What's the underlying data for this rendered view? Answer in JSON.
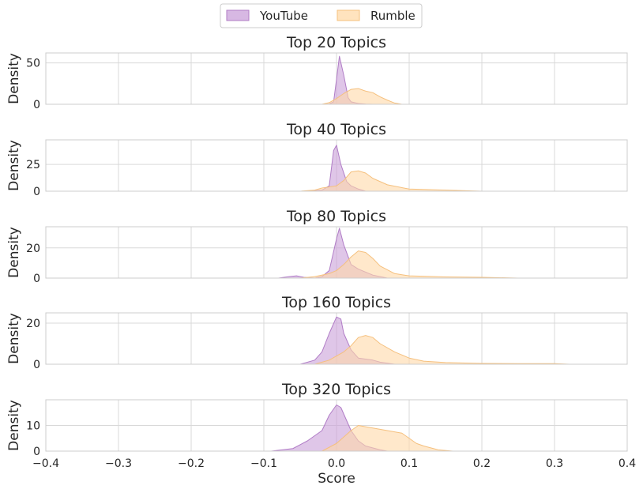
{
  "chart_data": {
    "type": "area",
    "legend": {
      "placement": "top-center",
      "entries": [
        {
          "name": "YouTube",
          "color": "#c9a0d9"
        },
        {
          "name": "Rumble",
          "color": "#ffd9a8"
        }
      ]
    },
    "xlabel": "Score",
    "ylabel": "Density",
    "xlim": [
      -0.4,
      0.4
    ],
    "xticks": [
      -0.4,
      -0.3,
      -0.2,
      -0.1,
      0.0,
      0.1,
      0.2,
      0.3,
      0.4
    ],
    "xtick_labels": [
      "−0.4",
      "−0.3",
      "−0.2",
      "−0.1",
      "0.0",
      "0.1",
      "0.2",
      "0.3",
      "0.4"
    ],
    "grid": true,
    "colors": {
      "youtube_fill": "#c9a0d9",
      "youtube_line": "#b07cc6",
      "rumble_fill": "#ffd9a8",
      "rumble_line": "#f5c07e"
    },
    "panels": [
      {
        "title": "Top 20 Topics",
        "ylim": [
          0,
          62
        ],
        "yticks": [
          0,
          50
        ],
        "series": [
          {
            "name": "YouTube",
            "x": [
              -0.02,
              -0.01,
              -0.004,
              0.0,
              0.004,
              0.01,
              0.016,
              0.02,
              0.03,
              0.04,
              0.05
            ],
            "y": [
              0,
              0.3,
              3,
              30,
              58,
              35,
              8,
              3,
              1,
              0.3,
              0
            ]
          },
          {
            "name": "Rumble",
            "x": [
              -0.02,
              -0.01,
              0.0,
              0.01,
              0.02,
              0.03,
              0.04,
              0.05,
              0.06,
              0.07,
              0.08,
              0.09
            ],
            "y": [
              0,
              2,
              7,
              13,
              18,
              19,
              16,
              14,
              9,
              5,
              1.5,
              0
            ]
          }
        ]
      },
      {
        "title": "Top 40 Topics",
        "ylim": [
          0,
          48
        ],
        "yticks": [
          0,
          25
        ],
        "series": [
          {
            "name": "YouTube",
            "x": [
              -0.04,
              -0.02,
              -0.01,
              -0.004,
              0.0,
              0.006,
              0.014,
              0.02,
              0.03,
              0.04
            ],
            "y": [
              0,
              1,
              5,
              38,
              43,
              25,
              9,
              5,
              2,
              0
            ]
          },
          {
            "name": "Rumble",
            "x": [
              -0.05,
              -0.03,
              -0.02,
              0.0,
              0.01,
              0.02,
              0.03,
              0.04,
              0.05,
              0.07,
              0.1,
              0.15,
              0.2
            ],
            "y": [
              0,
              1,
              3,
              5,
              10,
              18,
              19,
              17,
              12,
              6,
              2,
              1,
              0
            ]
          }
        ]
      },
      {
        "title": "Top 80 Topics",
        "ylim": [
          0,
          34
        ],
        "yticks": [
          0,
          20
        ],
        "series": [
          {
            "name": "YouTube",
            "x": [
              -0.08,
              -0.065,
              -0.055,
              -0.045,
              -0.03,
              -0.02,
              -0.01,
              0.0,
              0.004,
              0.01,
              0.02,
              0.03,
              0.05,
              0.07
            ],
            "y": [
              0,
              1,
              1.5,
              0.5,
              0,
              1,
              5,
              26,
              33,
              22,
              9,
              6,
              2,
              0
            ]
          },
          {
            "name": "Rumble",
            "x": [
              -0.05,
              -0.03,
              -0.01,
              0.0,
              0.01,
              0.02,
              0.03,
              0.04,
              0.05,
              0.06,
              0.08,
              0.1,
              0.15,
              0.2,
              0.25
            ],
            "y": [
              0,
              1,
              3,
              5,
              9,
              14,
              18,
              17,
              13,
              8,
              3,
              1.5,
              0.8,
              0.5,
              0
            ]
          }
        ]
      },
      {
        "title": "Top 160 Topics",
        "ylim": [
          0,
          25
        ],
        "yticks": [
          0,
          20
        ],
        "series": [
          {
            "name": "YouTube",
            "x": [
              -0.05,
              -0.03,
              -0.02,
              -0.01,
              0.0,
              0.006,
              0.01,
              0.02,
              0.03,
              0.04,
              0.05,
              0.06,
              0.08
            ],
            "y": [
              0,
              2,
              6,
              15,
              23,
              22,
              15,
              7,
              3,
              2.5,
              2,
              1,
              0
            ]
          },
          {
            "name": "Rumble",
            "x": [
              -0.03,
              -0.01,
              0.0,
              0.01,
              0.02,
              0.03,
              0.04,
              0.05,
              0.06,
              0.08,
              0.1,
              0.12,
              0.15,
              0.2,
              0.25,
              0.3,
              0.32
            ],
            "y": [
              0,
              2,
              4,
              6,
              9,
              13,
              14,
              13,
              10,
              6,
              3,
              1.5,
              0.8,
              0.4,
              0.3,
              0.3,
              0
            ]
          }
        ]
      },
      {
        "title": "Top 320 Topics",
        "ylim": [
          0,
          20
        ],
        "yticks": [
          0,
          10
        ],
        "series": [
          {
            "name": "YouTube",
            "x": [
              -0.09,
              -0.06,
              -0.04,
              -0.02,
              -0.01,
              0.0,
              0.006,
              0.02,
              0.03,
              0.04,
              0.06,
              0.07
            ],
            "y": [
              0,
              1,
              4,
              8,
              14,
              18,
              17,
              8,
              4,
              2,
              0.5,
              0
            ]
          },
          {
            "name": "Rumble",
            "x": [
              -0.02,
              0.0,
              0.02,
              0.03,
              0.05,
              0.07,
              0.08,
              0.09,
              0.1,
              0.11,
              0.12,
              0.14,
              0.16
            ],
            "y": [
              0,
              3,
              8,
              10,
              9,
              8,
              7.5,
              7,
              5,
              3,
              2,
              0.5,
              0
            ]
          }
        ]
      }
    ]
  }
}
